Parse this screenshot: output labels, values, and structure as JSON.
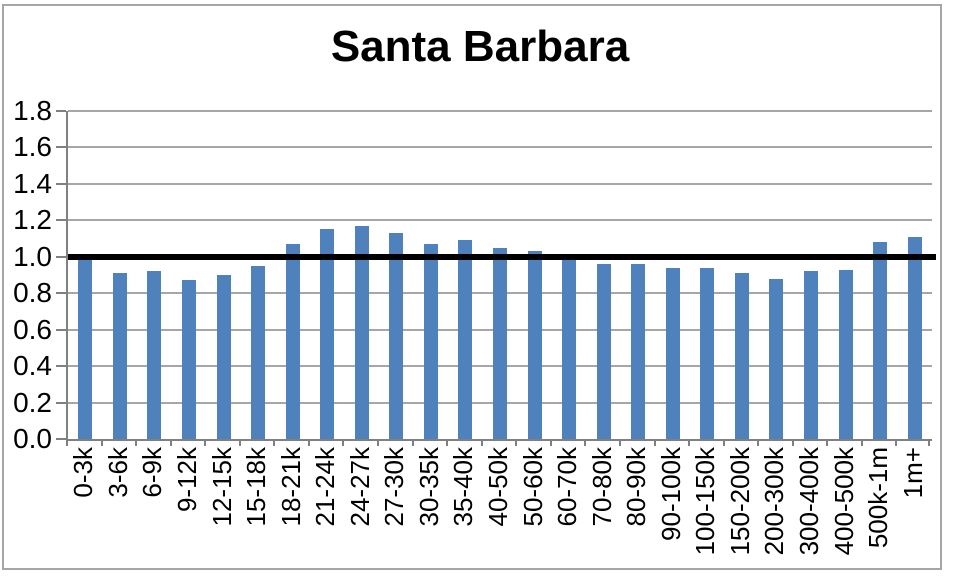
{
  "title": "Santa Barbara",
  "colors": {
    "bar": "#4F81BD",
    "gridline": "#A6A6A6",
    "axis": "#808080",
    "tick": "#808080",
    "reference_line": "#000000",
    "frame_border": "#A6A6A6",
    "background": "#FFFFFF",
    "text": "#000000"
  },
  "chart_data": {
    "type": "bar",
    "title": "Santa Barbara",
    "categories": [
      "0-3k",
      "3-6k",
      "6-9k",
      "9-12k",
      "12-15k",
      "15-18k",
      "18-21k",
      "21-24k",
      "24-27k",
      "27-30k",
      "30-35k",
      "35-40k",
      "40-50k",
      "50-60k",
      "60-70k",
      "70-80k",
      "80-90k",
      "90-100k",
      "100-150k",
      "150-200k",
      "200-300k",
      "300-400k",
      "400-500k",
      "500k-1m",
      "1m+"
    ],
    "values": [
      0.99,
      0.91,
      0.92,
      0.87,
      0.9,
      0.95,
      1.07,
      1.15,
      1.17,
      1.13,
      1.07,
      1.09,
      1.05,
      1.03,
      0.98,
      0.96,
      0.96,
      0.94,
      0.94,
      0.91,
      0.88,
      0.92,
      0.93,
      1.08,
      1.11
    ],
    "xlabel": "",
    "ylabel": "",
    "ylim": [
      0,
      1.8
    ],
    "ytick_step": 0.2,
    "ytick_labels": [
      "0.0",
      "0.2",
      "0.4",
      "0.6",
      "0.8",
      "1.0",
      "1.2",
      "1.4",
      "1.6",
      "1.8"
    ],
    "grid": true,
    "legend": false,
    "reference_line_y": 1.0
  }
}
